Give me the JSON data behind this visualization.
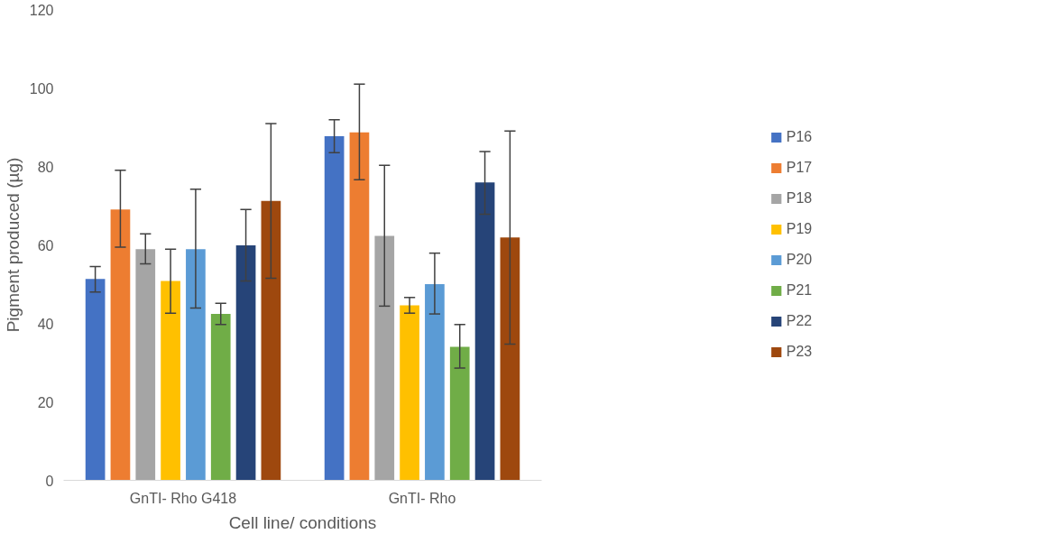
{
  "chart_data": {
    "type": "bar",
    "xlabel": "Cell line/ conditions",
    "ylabel": "Pigment produced (µg)",
    "categories": [
      "GnTI- Rho G418",
      "GnTI- Rho"
    ],
    "ylim": [
      0,
      120
    ],
    "yticks": [
      0,
      20,
      40,
      60,
      80,
      100,
      120
    ],
    "grid": false,
    "legend": "right",
    "series": [
      {
        "name": "P16",
        "color": "#4472c4",
        "values": [
          51.3,
          87.7
        ],
        "errors": [
          [
            48,
            54.5
          ],
          [
            83.5,
            91.9
          ]
        ]
      },
      {
        "name": "P17",
        "color": "#ed7d31",
        "values": [
          69,
          88.7
        ],
        "errors": [
          [
            59.4,
            79
          ],
          [
            76.6,
            101
          ]
        ]
      },
      {
        "name": "P18",
        "color": "#a5a5a5",
        "values": [
          58.9,
          62.3
        ],
        "errors": [
          [
            55.2,
            62.8
          ],
          [
            44.4,
            80.3
          ]
        ]
      },
      {
        "name": "P19",
        "color": "#ffc000",
        "values": [
          50.8,
          44.6
        ],
        "errors": [
          [
            42.6,
            58.9
          ],
          [
            42.6,
            46.6
          ]
        ]
      },
      {
        "name": "P20",
        "color": "#5b9bd5",
        "values": [
          58.9,
          50
        ],
        "errors": [
          [
            43.9,
            74.2
          ],
          [
            42.4,
            57.9
          ]
        ]
      },
      {
        "name": "P21",
        "color": "#70ad47",
        "values": [
          42.4,
          34
        ],
        "errors": [
          [
            39.7,
            45.1
          ],
          [
            28.6,
            39.7
          ]
        ]
      },
      {
        "name": "P22",
        "color": "#264478",
        "values": [
          59.9,
          75.9
        ],
        "errors": [
          [
            50.8,
            69
          ],
          [
            67.8,
            83.8
          ]
        ]
      },
      {
        "name": "P23",
        "color": "#9e480e",
        "values": [
          71.2,
          61.9
        ],
        "errors": [
          [
            51.5,
            90.9
          ],
          [
            34.7,
            89
          ]
        ]
      }
    ]
  }
}
